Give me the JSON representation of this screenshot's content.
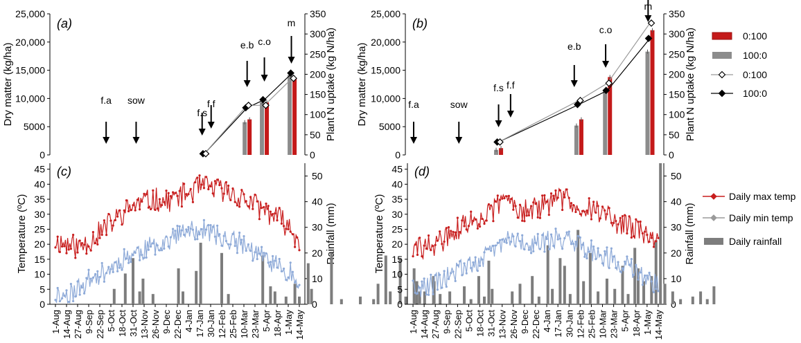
{
  "chart_data": [
    {
      "id": "a",
      "type": "bar+line",
      "panel_label": "(a)",
      "ylabel": "Dry matter (kg/ha)",
      "y2label": "Plant N uptake (kg N/ha)",
      "ylim": [
        0,
        25000
      ],
      "y2lim": [
        0,
        350
      ],
      "yticks": [
        "0",
        "5000",
        "10,000",
        "15,000",
        "20,000",
        "25,000"
      ],
      "y2ticks": [
        "0",
        "50",
        "100",
        "150",
        "200",
        "250",
        "300",
        "350"
      ],
      "stages": [
        {
          "label": "f.a",
          "x": 7.5
        },
        {
          "label": "sow",
          "x": 11.5
        },
        {
          "label": "f.s",
          "x": 20.3
        },
        {
          "label": "f.f",
          "x": 21.5
        },
        {
          "label": "e.b",
          "x": 26.3
        },
        {
          "label": "c.o",
          "x": 28.6
        },
        {
          "label": "m",
          "x": 32.2
        }
      ],
      "bars": [
        {
          "x": 20.6,
          "v_0_100": 300,
          "v_100_0": 250
        },
        {
          "x": 26.3,
          "v_0_100": 6300,
          "v_100_0": 5800
        },
        {
          "x": 28.6,
          "v_0_100": 9300,
          "v_100_0": 9300
        },
        {
          "x": 32.3,
          "v_0_100": 13700,
          "v_100_0": 14200
        }
      ],
      "n_0_100": [
        [
          20.6,
          3
        ],
        [
          26.3,
          123
        ],
        [
          28.6,
          123
        ],
        [
          32.3,
          190
        ]
      ],
      "n_100_0": [
        [
          20.6,
          3
        ],
        [
          26.3,
          117
        ],
        [
          28.6,
          137
        ],
        [
          32.3,
          203
        ]
      ]
    },
    {
      "id": "b",
      "type": "bar+line",
      "panel_label": "(b)",
      "ylabel": "Dry matter (kg/ha)",
      "y2label": "Plant N uptake (kg N/ha)",
      "ylim": [
        0,
        25000
      ],
      "y2lim": [
        0,
        350
      ],
      "yticks": [
        "0",
        "5000",
        "10,000",
        "15,000",
        "20,000",
        "25,000"
      ],
      "y2ticks": [
        "0",
        "50",
        "100",
        "150",
        "200",
        "250",
        "300",
        "350"
      ],
      "stages": [
        {
          "label": "f.a",
          "x": 0.9
        },
        {
          "label": "sow",
          "x": 5.8
        },
        {
          "label": "f.s",
          "x": 10.1
        },
        {
          "label": "f.f",
          "x": 11.4
        },
        {
          "label": "e.b",
          "x": 18.3
        },
        {
          "label": "c.o",
          "x": 21.7
        },
        {
          "label": "m",
          "x": 26.3
        }
      ],
      "bars": [
        {
          "x": 10.1,
          "v_0_100": 1200,
          "v_100_0": 900
        },
        {
          "x": 18.8,
          "v_0_100": 6300,
          "v_100_0": 5200
        },
        {
          "x": 21.9,
          "v_0_100": 13800,
          "v_100_0": 11300
        },
        {
          "x": 26.5,
          "v_0_100": 22100,
          "v_100_0": 18300
        }
      ],
      "n_0_100": [
        [
          10.1,
          32
        ],
        [
          18.8,
          135
        ],
        [
          21.9,
          178
        ],
        [
          26.5,
          327
        ]
      ],
      "n_100_0": [
        [
          10.1,
          32
        ],
        [
          18.8,
          125
        ],
        [
          21.9,
          160
        ],
        [
          26.5,
          289
        ]
      ]
    },
    {
      "id": "c",
      "type": "line+bar",
      "panel_label": "(c)",
      "ylabel": "Temperature (ºC)",
      "y2label": "Rainfall (mm)",
      "ylim": [
        0,
        47
      ],
      "y2lim": [
        0,
        55
      ],
      "yticks": [
        "0",
        "5",
        "10",
        "15",
        "20",
        "25",
        "30",
        "35",
        "40",
        "45"
      ],
      "y2ticks": [
        "0",
        "10",
        "20",
        "30",
        "40",
        "50"
      ],
      "categories": [
        "1-Aug",
        "14-Aug",
        "27-Aug",
        "9-Sep",
        "22-Sep",
        "5-Oct",
        "18-Oct",
        "31-Oct",
        "13-Nov",
        "26-Nov",
        "9-Dec",
        "22-Dec",
        "4-Jan",
        "17-Jan",
        "30-Jan",
        "12-Feb",
        "25-Feb",
        "10-Mar",
        "23-Mar",
        "5-Apr",
        "18-Apr",
        "1-May",
        "14-May"
      ],
      "max_temp_key": [
        [
          0,
          21
        ],
        [
          1,
          20
        ],
        [
          2,
          19
        ],
        [
          3,
          21
        ],
        [
          4,
          24
        ],
        [
          5,
          27
        ],
        [
          6,
          30
        ],
        [
          7,
          33
        ],
        [
          8,
          34
        ],
        [
          9,
          35
        ],
        [
          10,
          34
        ],
        [
          11,
          36
        ],
        [
          12,
          37
        ],
        [
          13,
          39
        ],
        [
          14,
          39
        ],
        [
          15,
          38
        ],
        [
          16,
          37
        ],
        [
          17,
          35
        ],
        [
          18,
          33
        ],
        [
          19,
          31
        ],
        [
          20,
          29
        ],
        [
          21,
          26
        ],
        [
          22,
          21
        ]
      ],
      "min_temp_key": [
        [
          0,
          3
        ],
        [
          1,
          3
        ],
        [
          2,
          5
        ],
        [
          3,
          8
        ],
        [
          4,
          10
        ],
        [
          5,
          12
        ],
        [
          6,
          15
        ],
        [
          7,
          17
        ],
        [
          8,
          18
        ],
        [
          9,
          20
        ],
        [
          10,
          21
        ],
        [
          11,
          23
        ],
        [
          12,
          24
        ],
        [
          13,
          25
        ],
        [
          14,
          24
        ],
        [
          15,
          22
        ],
        [
          16,
          21
        ],
        [
          17,
          20
        ],
        [
          18,
          17
        ],
        [
          19,
          15
        ],
        [
          20,
          13
        ],
        [
          21,
          11
        ],
        [
          22,
          8
        ]
      ],
      "rain_events": [
        [
          5.8,
          6
        ],
        [
          6.8,
          12
        ],
        [
          7.5,
          18
        ],
        [
          8.1,
          5
        ],
        [
          8.4,
          10
        ],
        [
          9.3,
          4
        ],
        [
          11.6,
          14
        ],
        [
          12.0,
          5
        ],
        [
          13.2,
          13
        ],
        [
          13.6,
          24
        ],
        [
          15.5,
          20
        ],
        [
          16.1,
          4
        ],
        [
          19.2,
          19
        ],
        [
          19.9,
          7
        ],
        [
          20.3,
          5
        ],
        [
          21.3,
          3
        ],
        [
          22.1,
          8
        ],
        [
          22.5,
          3
        ],
        [
          23.3,
          16
        ],
        [
          23.6,
          6
        ],
        [
          25.4,
          20
        ],
        [
          26.3,
          2
        ],
        [
          28.0,
          3
        ],
        [
          29.2,
          2
        ],
        [
          29.6,
          8
        ],
        [
          30.3,
          19
        ],
        [
          30.7,
          5
        ],
        [
          31.6,
          18
        ],
        [
          32.1,
          3
        ],
        [
          33.1,
          9
        ],
        [
          33.8,
          5
        ],
        [
          34.6,
          11
        ],
        [
          35.2,
          4
        ]
      ]
    },
    {
      "id": "d",
      "type": "line+bar",
      "panel_label": "(d)",
      "ylabel": "Temperature (ºC)",
      "y2label": "Rainfall (mm)",
      "ylim": [
        0,
        47
      ],
      "y2lim": [
        0,
        55
      ],
      "yticks": [
        "0",
        "5",
        "10",
        "15",
        "20",
        "25",
        "30",
        "35",
        "40",
        "45"
      ],
      "y2ticks": [
        "0",
        "10",
        "20",
        "30",
        "40",
        "50"
      ],
      "categories": [
        "1-Aug",
        "14-Aug",
        "27-Aug",
        "9-Sep",
        "22-Sep",
        "5-Oct",
        "18-Oct",
        "31-Oct",
        "13-Nov",
        "26-Nov",
        "9-Dec",
        "22-Dec",
        "4-Jan",
        "17-Jan",
        "30-Jan",
        "12-Feb",
        "25-Feb",
        "10-Mar",
        "23-Mar",
        "5-Apr",
        "18-Apr",
        "1-May",
        "14-May"
      ],
      "max_temp_key": [
        [
          0,
          18
        ],
        [
          1,
          19
        ],
        [
          2,
          20
        ],
        [
          3,
          22
        ],
        [
          4,
          25
        ],
        [
          5,
          27
        ],
        [
          6,
          29
        ],
        [
          7,
          30
        ],
        [
          8,
          35
        ],
        [
          9,
          34
        ],
        [
          10,
          31
        ],
        [
          11,
          32
        ],
        [
          12,
          33
        ],
        [
          13,
          35
        ],
        [
          14,
          35
        ],
        [
          15,
          33
        ],
        [
          16,
          32
        ],
        [
          17,
          30
        ],
        [
          18,
          28
        ],
        [
          19,
          26
        ],
        [
          20,
          25
        ],
        [
          21,
          23
        ],
        [
          22,
          20
        ]
      ],
      "min_temp_key": [
        [
          0,
          5
        ],
        [
          1,
          6
        ],
        [
          2,
          7
        ],
        [
          3,
          9
        ],
        [
          4,
          11
        ],
        [
          5,
          13
        ],
        [
          6,
          15
        ],
        [
          7,
          17
        ],
        [
          8,
          21
        ],
        [
          9,
          22
        ],
        [
          10,
          19
        ],
        [
          11,
          20
        ],
        [
          12,
          21
        ],
        [
          13,
          22
        ],
        [
          14,
          22
        ],
        [
          15,
          20
        ],
        [
          16,
          18
        ],
        [
          17,
          16
        ],
        [
          18,
          15
        ],
        [
          19,
          13
        ],
        [
          20,
          11
        ],
        [
          21,
          9
        ],
        [
          22,
          6
        ]
      ],
      "rain_events": [
        [
          0.6,
          14
        ],
        [
          1.1,
          5
        ],
        [
          2.4,
          9
        ],
        [
          3.8,
          5
        ],
        [
          5.1,
          7
        ],
        [
          5.7,
          2
        ],
        [
          6.4,
          11
        ],
        [
          6.9,
          3
        ],
        [
          7.3,
          17
        ],
        [
          7.6,
          6
        ],
        [
          9.4,
          5
        ],
        [
          10.1,
          8
        ],
        [
          11.2,
          11
        ],
        [
          11.8,
          3
        ],
        [
          12.6,
          23
        ],
        [
          13.0,
          6
        ],
        [
          13.7,
          18
        ],
        [
          14.1,
          15
        ],
        [
          14.6,
          4
        ],
        [
          15.3,
          29
        ],
        [
          15.8,
          9
        ],
        [
          16.4,
          20
        ],
        [
          17.1,
          5
        ],
        [
          17.9,
          10
        ],
        [
          18.6,
          6
        ],
        [
          19.3,
          15
        ],
        [
          19.8,
          4
        ],
        [
          20.4,
          22
        ],
        [
          20.7,
          14
        ],
        [
          21.2,
          9
        ],
        [
          21.9,
          11
        ],
        [
          22.3,
          25
        ],
        [
          22.7,
          55
        ],
        [
          23.1,
          8
        ],
        [
          23.8,
          5
        ],
        [
          24.5,
          2
        ],
        [
          25.6,
          3
        ],
        [
          26.3,
          5
        ],
        [
          26.9,
          2
        ],
        [
          27.5,
          7
        ]
      ]
    }
  ],
  "legend_ab": [
    {
      "label": "0:100",
      "kind": "red-bar"
    },
    {
      "label": "100:0",
      "kind": "gray-bar"
    },
    {
      "label": "0:100",
      "kind": "open-diamond-line"
    },
    {
      "label": "100:0",
      "kind": "filled-diamond-line"
    }
  ],
  "legend_cd": [
    {
      "label": "Daily max temp",
      "kind": "red-line"
    },
    {
      "label": "Daily min temp",
      "kind": "blue-line"
    },
    {
      "label": "Daily rainfall",
      "kind": "gray-bar"
    }
  ],
  "colors": {
    "red": "#c41a1a",
    "darkred": "#9c1010",
    "gray": "#8c8c8c",
    "maxtemp": "#c81e1e",
    "mintemp": "#8eaad8",
    "rain": "#7d7d7d",
    "axis": "#000000"
  }
}
